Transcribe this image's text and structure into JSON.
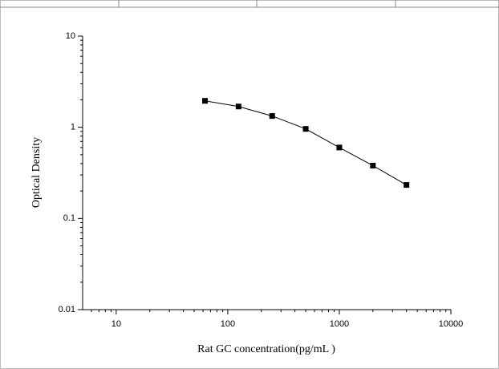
{
  "chart_data": {
    "type": "line",
    "x_label": "Rat GC concentration(pg/mL )",
    "y_label": "Optical Density",
    "x": [
      62.5,
      125,
      250,
      500,
      1000,
      2000,
      4000
    ],
    "series": [
      {
        "color": "#000000",
        "values": [
          1.95,
          1.69,
          1.33,
          0.96,
          0.6,
          0.38,
          0.233
        ]
      }
    ],
    "xlim": [
      5,
      10000
    ],
    "xticks": [
      10,
      100,
      1000,
      10000
    ],
    "ylim": [
      0.01,
      10
    ],
    "yticks": [
      0.01,
      0.1,
      1,
      10
    ],
    "xscale": "log",
    "yscale": "log"
  }
}
